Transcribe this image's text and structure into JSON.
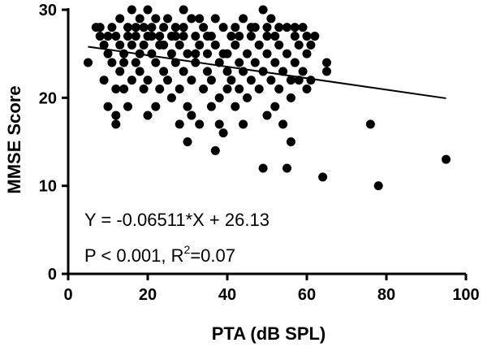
{
  "chart_data": {
    "type": "scatter",
    "title": "",
    "xlabel": "PTA (dB SPL)",
    "ylabel": "MMSE Score",
    "xlim": [
      0,
      100
    ],
    "ylim": [
      0,
      30
    ],
    "xticks": [
      0,
      20,
      40,
      60,
      80,
      100
    ],
    "yticks": [
      0,
      10,
      20,
      30
    ],
    "grid": false,
    "point_color": "#000000",
    "line_color": "#000000",
    "regression": {
      "slope": -0.06511,
      "intercept": 26.13,
      "x_range": [
        5,
        95
      ]
    },
    "annotations": {
      "equation": "Y = -0.06511*X + 26.13",
      "stats_prefix": "P < 0.001, R",
      "stats_sup": "2",
      "stats_suffix": "=0.07"
    },
    "points": [
      [
        5,
        24
      ],
      [
        7,
        28
      ],
      [
        8,
        27
      ],
      [
        9,
        26
      ],
      [
        9,
        22
      ],
      [
        10,
        19
      ],
      [
        10,
        25
      ],
      [
        11,
        28
      ],
      [
        11,
        24
      ],
      [
        12,
        18
      ],
      [
        12,
        17
      ],
      [
        12,
        21
      ],
      [
        12,
        27
      ],
      [
        13,
        26
      ],
      [
        13,
        29
      ],
      [
        13,
        23
      ],
      [
        14,
        21
      ],
      [
        14,
        25
      ],
      [
        15,
        28
      ],
      [
        15,
        27
      ],
      [
        15,
        19
      ],
      [
        16,
        30
      ],
      [
        16,
        26
      ],
      [
        16,
        22
      ],
      [
        17,
        24
      ],
      [
        17,
        27
      ],
      [
        18,
        29
      ],
      [
        18,
        23
      ],
      [
        18,
        25
      ],
      [
        19,
        28
      ],
      [
        19,
        21
      ],
      [
        19,
        26
      ],
      [
        20,
        18
      ],
      [
        20,
        30
      ],
      [
        20,
        27
      ],
      [
        20,
        22
      ],
      [
        21,
        25
      ],
      [
        21,
        28
      ],
      [
        22,
        19
      ],
      [
        22,
        24
      ],
      [
        22,
        29
      ],
      [
        23,
        26
      ],
      [
        23,
        21
      ],
      [
        23,
        27
      ],
      [
        24,
        28
      ],
      [
        24,
        23
      ],
      [
        25,
        22
      ],
      [
        25,
        29
      ],
      [
        26,
        25
      ],
      [
        26,
        20
      ],
      [
        26,
        27
      ],
      [
        27,
        24
      ],
      [
        27,
        28
      ],
      [
        28,
        21
      ],
      [
        28,
        26
      ],
      [
        28,
        17
      ],
      [
        29,
        30
      ],
      [
        29,
        23
      ],
      [
        29,
        27
      ],
      [
        30,
        15
      ],
      [
        30,
        25
      ],
      [
        30,
        19
      ],
      [
        31,
        29
      ],
      [
        31,
        22
      ],
      [
        31,
        18
      ],
      [
        32,
        27
      ],
      [
        32,
        24
      ],
      [
        33,
        26
      ],
      [
        33,
        17
      ],
      [
        33,
        29
      ],
      [
        34,
        21
      ],
      [
        34,
        28
      ],
      [
        35,
        23
      ],
      [
        35,
        25
      ],
      [
        36,
        19
      ],
      [
        36,
        27
      ],
      [
        36,
        22
      ],
      [
        37,
        14
      ],
      [
        37,
        26
      ],
      [
        37,
        29
      ],
      [
        38,
        24
      ],
      [
        38,
        20
      ],
      [
        38,
        17
      ],
      [
        39,
        28
      ],
      [
        39,
        16
      ],
      [
        40,
        23
      ],
      [
        40,
        25
      ],
      [
        40,
        21
      ],
      [
        41,
        27
      ],
      [
        41,
        22
      ],
      [
        42,
        26
      ],
      [
        42,
        19
      ],
      [
        42,
        28
      ],
      [
        43,
        24
      ],
      [
        43,
        21
      ],
      [
        44,
        29
      ],
      [
        44,
        23
      ],
      [
        44,
        17
      ],
      [
        45,
        25
      ],
      [
        45,
        20
      ],
      [
        46,
        27
      ],
      [
        46,
        22
      ],
      [
        47,
        24
      ],
      [
        47,
        28
      ],
      [
        48,
        21
      ],
      [
        48,
        26
      ],
      [
        49,
        12
      ],
      [
        49,
        23
      ],
      [
        49,
        30
      ],
      [
        50,
        27
      ],
      [
        50,
        18
      ],
      [
        50,
        25
      ],
      [
        51,
        22
      ],
      [
        51,
        29
      ],
      [
        52,
        19
      ],
      [
        52,
        24
      ],
      [
        52,
        27
      ],
      [
        53,
        21
      ],
      [
        53,
        26
      ],
      [
        54,
        23
      ],
      [
        54,
        17
      ],
      [
        55,
        12
      ],
      [
        55,
        25
      ],
      [
        55,
        28
      ],
      [
        56,
        15
      ],
      [
        56,
        22
      ],
      [
        56,
        20
      ],
      [
        57,
        24
      ],
      [
        57,
        27
      ],
      [
        58,
        26
      ],
      [
        58,
        22
      ],
      [
        59,
        23
      ],
      [
        59,
        28
      ],
      [
        60,
        21
      ],
      [
        60,
        25
      ],
      [
        61,
        22
      ],
      [
        62,
        27
      ],
      [
        64,
        11
      ],
      [
        65,
        24
      ],
      [
        65,
        23
      ],
      [
        76,
        17
      ],
      [
        78,
        10
      ],
      [
        95,
        13
      ],
      [
        8,
        28
      ],
      [
        10,
        27
      ],
      [
        14,
        24
      ],
      [
        17,
        28
      ],
      [
        21,
        27
      ],
      [
        24,
        26
      ],
      [
        27,
        27
      ],
      [
        29,
        28
      ],
      [
        32,
        25
      ],
      [
        35,
        27
      ],
      [
        39,
        25
      ],
      [
        43,
        27
      ],
      [
        46,
        28
      ],
      [
        50,
        28
      ],
      [
        53,
        28
      ],
      [
        57,
        28
      ],
      [
        60,
        27
      ],
      [
        61,
        26
      ]
    ]
  }
}
